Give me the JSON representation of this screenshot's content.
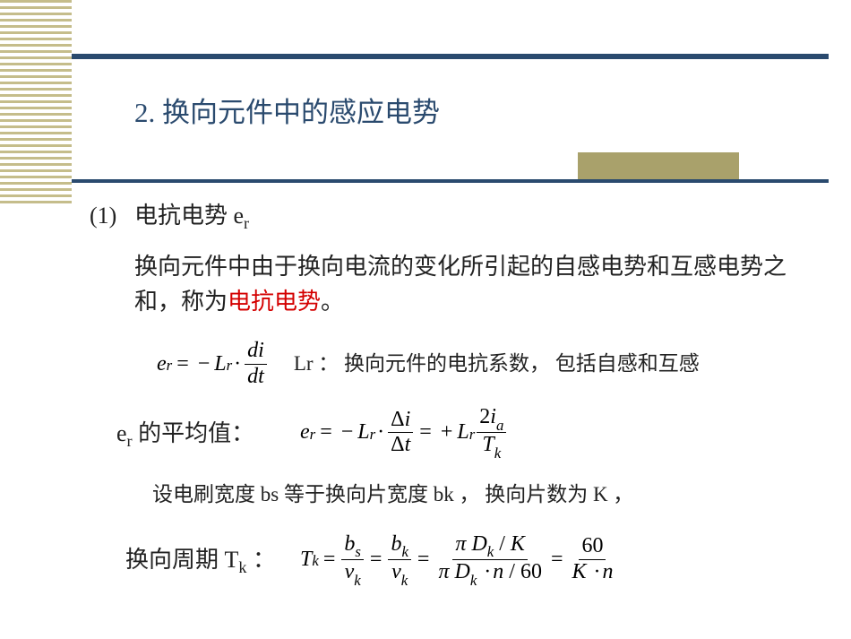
{
  "colors": {
    "rule": "#2a4a6e",
    "stripe": "#c5bd8b",
    "accent": "#a9a16b",
    "highlight": "#d40000",
    "text": "#222222",
    "background": "#ffffff"
  },
  "typography": {
    "title_fontsize": 31,
    "body_fontsize": 26,
    "note_fontsize": 23,
    "eq_fontsize": 24,
    "font_body": "SimSun",
    "font_math": "Times New Roman"
  },
  "title": "2.   换向元件中的感应电势",
  "section": {
    "number": "(1)",
    "label_prefix": "电抗电势 e",
    "label_sub": "r"
  },
  "paragraph": {
    "text_pre": "换向元件中由于换向电流的变化所引起的自感电势和互感电势之和，称为",
    "highlight": "电抗电势",
    "text_post": "。"
  },
  "eq1": {
    "lhs_var": "e",
    "lhs_sub": "r",
    "eq": "=",
    "minus": "−",
    "L": "L",
    "L_sub": "r",
    "cdot": "·",
    "frac_num": "di",
    "frac_den": "dt"
  },
  "lr_note": "Lr ： 换向元件的电抗系数，   包括自感和互感",
  "avg_label_pre": "e",
  "avg_label_sub": "r",
  "avg_label_post": " 的平均值：",
  "eq2": {
    "e": "e",
    "e_sub": "r",
    "eq": "=",
    "minus": "−",
    "L": "L",
    "L_sub": "r",
    "cdot": "·",
    "di": "Δi",
    "dt": "Δt",
    "plus": "+",
    "L2": "L",
    "L2_sub": "r",
    "num2_pre": "2",
    "num2_var": "i",
    "num2_sub": "a",
    "den2_var": "T",
    "den2_sub": "k"
  },
  "brush_note": "设电刷宽度 bs 等于换向片宽度 bk ，   换向片数为 K ，",
  "tk_label_pre": "换向周期 T",
  "tk_label_sub": "k",
  "tk_label_post": " ：",
  "eq3": {
    "T": "T",
    "T_sub": "k",
    "eq": "=",
    "b": "b",
    "bs_sub": "s",
    "v": "v",
    "vk_sub": "k",
    "bk_sub": "k",
    "pi": "π",
    "D": "D",
    "Dk_sub": "k",
    "K": "K",
    "slash": "/",
    "cdot": "·",
    "n": "n",
    "inv60": "60",
    "num60": "60"
  }
}
